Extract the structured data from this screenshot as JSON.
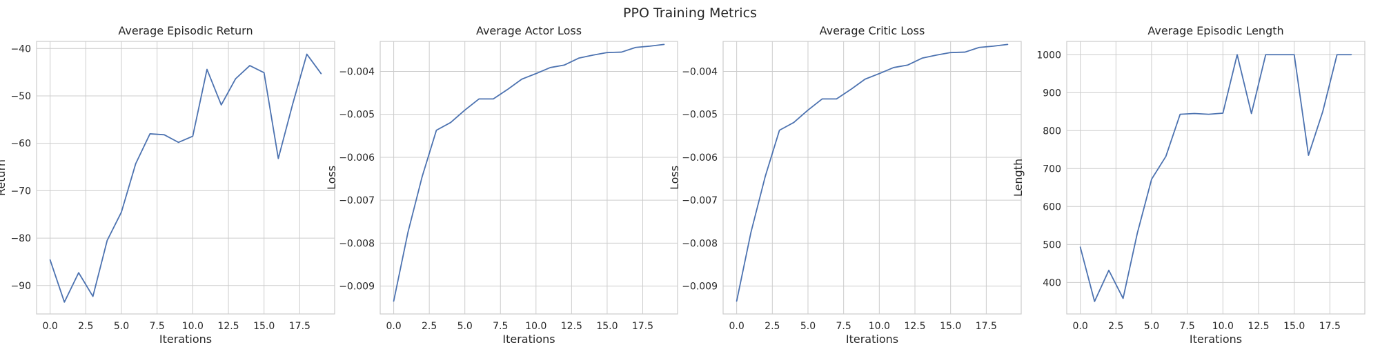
{
  "figure": {
    "title": "PPO Training Metrics"
  },
  "colors": {
    "series": "#4c72b0",
    "grid": "#cccccc",
    "background": "#ffffff"
  },
  "chart_data": [
    {
      "type": "line",
      "title": "Average Episodic Return",
      "xlabel": "Iterations",
      "ylabel": "Return",
      "xlim": [
        -0.95,
        19.95
      ],
      "ylim": [
        -96,
        -38.5
      ],
      "xticks": [
        0.0,
        2.5,
        5.0,
        7.5,
        10.0,
        12.5,
        15.0,
        17.5
      ],
      "xtick_labels": [
        "0.0",
        "2.5",
        "5.0",
        "7.5",
        "10.0",
        "12.5",
        "15.0",
        "17.5"
      ],
      "yticks": [
        -90,
        -80,
        -70,
        -60,
        -50,
        -40
      ],
      "ytick_labels": [
        "−90",
        "−80",
        "−70",
        "−60",
        "−50",
        "−40"
      ],
      "grid": true,
      "x": [
        0,
        1,
        2,
        3,
        4,
        5,
        6,
        7,
        8,
        9,
        10,
        11,
        12,
        13,
        14,
        15,
        16,
        17,
        18,
        19
      ],
      "y": [
        -84.6,
        -93.5,
        -87.3,
        -92.3,
        -80.5,
        -74.5,
        -64.3,
        -58.0,
        -58.2,
        -59.8,
        -58.5,
        -44.4,
        -51.9,
        -46.4,
        -43.6,
        -45.1,
        -63.2,
        -51.8,
        -41.2,
        -45.3
      ]
    },
    {
      "type": "line",
      "title": "Average Actor Loss",
      "xlabel": "Iterations",
      "ylabel": "Loss",
      "xlim": [
        -0.95,
        19.95
      ],
      "ylim": [
        -0.00965,
        -0.0033
      ],
      "xticks": [
        0.0,
        2.5,
        5.0,
        7.5,
        10.0,
        12.5,
        15.0,
        17.5
      ],
      "xtick_labels": [
        "0.0",
        "2.5",
        "5.0",
        "7.5",
        "10.0",
        "12.5",
        "15.0",
        "17.5"
      ],
      "yticks": [
        -0.009,
        -0.008,
        -0.007,
        -0.006,
        -0.005,
        -0.004
      ],
      "ytick_labels": [
        "−0.009",
        "−0.008",
        "−0.007",
        "−0.006",
        "−0.005",
        "−0.004"
      ],
      "grid": true,
      "x": [
        0,
        1,
        2,
        3,
        4,
        5,
        6,
        7,
        8,
        9,
        10,
        11,
        12,
        13,
        14,
        15,
        16,
        17,
        18,
        19
      ],
      "y": [
        -0.00935,
        -0.00775,
        -0.00645,
        -0.00537,
        -0.00519,
        -0.0049,
        -0.00464,
        -0.00464,
        -0.00442,
        -0.00418,
        -0.00405,
        -0.00391,
        -0.00385,
        -0.00369,
        -0.00362,
        -0.00356,
        -0.00355,
        -0.00344,
        -0.00341,
        -0.00337
      ]
    },
    {
      "type": "line",
      "title": "Average Critic Loss",
      "xlabel": "Iterations",
      "ylabel": "Loss",
      "xlim": [
        -0.95,
        19.95
      ],
      "ylim": [
        -0.00965,
        -0.0033
      ],
      "xticks": [
        0.0,
        2.5,
        5.0,
        7.5,
        10.0,
        12.5,
        15.0,
        17.5
      ],
      "xtick_labels": [
        "0.0",
        "2.5",
        "5.0",
        "7.5",
        "10.0",
        "12.5",
        "15.0",
        "17.5"
      ],
      "yticks": [
        -0.009,
        -0.008,
        -0.007,
        -0.006,
        -0.005,
        -0.004
      ],
      "ytick_labels": [
        "−0.009",
        "−0.008",
        "−0.007",
        "−0.006",
        "−0.005",
        "−0.004"
      ],
      "grid": true,
      "x": [
        0,
        1,
        2,
        3,
        4,
        5,
        6,
        7,
        8,
        9,
        10,
        11,
        12,
        13,
        14,
        15,
        16,
        17,
        18,
        19
      ],
      "y": [
        -0.00935,
        -0.00775,
        -0.00645,
        -0.00537,
        -0.00519,
        -0.0049,
        -0.00464,
        -0.00464,
        -0.00442,
        -0.00418,
        -0.00405,
        -0.00391,
        -0.00385,
        -0.00369,
        -0.00362,
        -0.00356,
        -0.00355,
        -0.00344,
        -0.00341,
        -0.00337
      ]
    },
    {
      "type": "line",
      "title": "Average Episodic Length",
      "xlabel": "Iterations",
      "ylabel": "Length",
      "xlim": [
        -0.95,
        19.95
      ],
      "ylim": [
        317,
        1035
      ],
      "xticks": [
        0.0,
        2.5,
        5.0,
        7.5,
        10.0,
        12.5,
        15.0,
        17.5
      ],
      "xtick_labels": [
        "0.0",
        "2.5",
        "5.0",
        "7.5",
        "10.0",
        "12.5",
        "15.0",
        "17.5"
      ],
      "yticks": [
        400,
        500,
        600,
        700,
        800,
        900,
        1000
      ],
      "ytick_labels": [
        "400",
        "500",
        "600",
        "700",
        "800",
        "900",
        "1000"
      ],
      "grid": true,
      "x": [
        0,
        1,
        2,
        3,
        4,
        5,
        6,
        7,
        8,
        9,
        10,
        11,
        12,
        13,
        14,
        15,
        16,
        17,
        18,
        19
      ],
      "y": [
        493,
        350,
        432,
        358,
        530,
        672,
        732,
        843,
        845,
        843,
        846,
        1000,
        845,
        1000,
        1000,
        1000,
        735,
        850,
        1000,
        1000
      ]
    }
  ]
}
